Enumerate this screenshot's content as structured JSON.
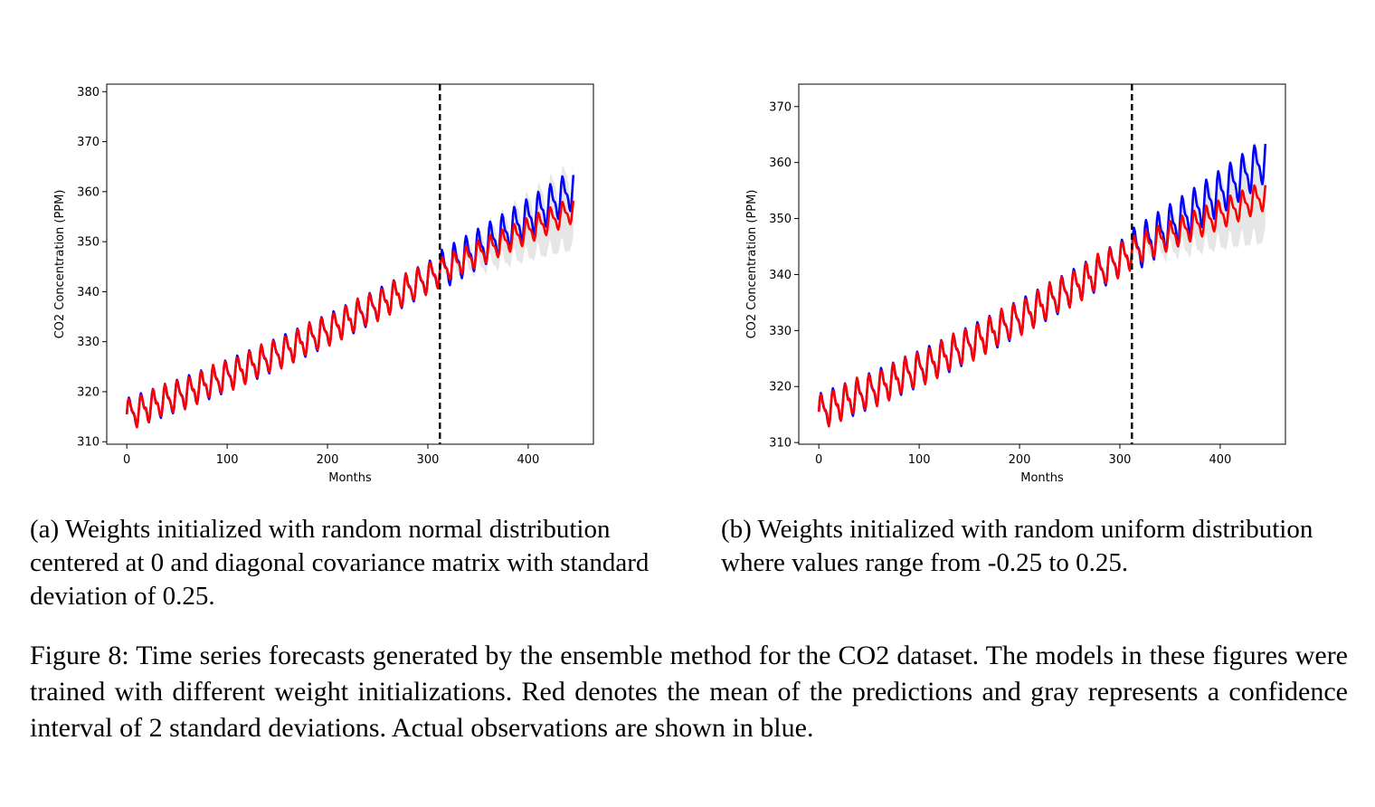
{
  "colors": {
    "actual": "#0000ff",
    "mean": "#ff0000",
    "interval": "#e6e6e6",
    "split": "#000000"
  },
  "chart_data": [
    {
      "type": "line",
      "id": "a",
      "xlabel": "Months",
      "ylabel": "CO2 Concentration (PPM)",
      "xlim": [
        -20,
        465
      ],
      "ylim": [
        309.5,
        381.5
      ],
      "xticks": [
        0,
        100,
        200,
        300,
        400
      ],
      "yticks": [
        310,
        320,
        330,
        340,
        350,
        360,
        370,
        380
      ],
      "split_x": 312,
      "n_months": 446,
      "actual_trend": {
        "start": 315.5,
        "linear": 0.07,
        "quadratic": 7e-05,
        "seasonal_amplitude": 3.2
      },
      "mean_trend_forecast": {
        "start_x": 312,
        "slope": 0.092,
        "seasonal_amplitude": 2.6
      },
      "interval_half_width": {
        "start": 1.0,
        "end": 8.5
      },
      "series": [
        {
          "name": "Actual observations",
          "color": "#0000ff"
        },
        {
          "name": "Mean of predictions",
          "color": "#ff0000"
        },
        {
          "name": "Confidence interval of 2 standard deviations",
          "color": "#e6e6e6"
        }
      ]
    },
    {
      "type": "line",
      "id": "b",
      "xlabel": "Months",
      "ylabel": "CO2 Concentration (PPM)",
      "xlim": [
        -20,
        465
      ],
      "ylim": [
        309.7,
        374.0
      ],
      "xticks": [
        0,
        100,
        200,
        300,
        400
      ],
      "yticks": [
        310,
        320,
        330,
        340,
        350,
        360,
        370
      ],
      "split_x": 312,
      "n_months": 446,
      "actual_trend": {
        "start": 315.5,
        "linear": 0.07,
        "quadratic": 7e-05,
        "seasonal_amplitude": 3.2
      },
      "mean_trend_forecast": {
        "start_x": 312,
        "slope": 0.075,
        "seasonal_amplitude": 2.6
      },
      "interval_half_width": {
        "start": 1.0,
        "end": 9.0
      },
      "series": [
        {
          "name": "Actual observations",
          "color": "#0000ff"
        },
        {
          "name": "Mean of predictions",
          "color": "#ff0000"
        },
        {
          "name": "Confidence interval of 2 standard deviations",
          "color": "#e6e6e6"
        }
      ]
    }
  ],
  "captions": {
    "a": "(a) Weights initialized with random normal distribution centered at 0 and diagonal covariance matrix with standard deviation of 0.25.",
    "b": "(b) Weights initialized with random uniform distribution where values range from -0.25 to 0.25.",
    "figure": "Figure 8: Time series forecasts generated by the ensemble method for the CO2 dataset. The models in these figures were trained with different weight initializations. Red denotes the mean of the predictions and gray represents a confidence interval of 2 standard deviations. Actual observations are shown in blue."
  }
}
